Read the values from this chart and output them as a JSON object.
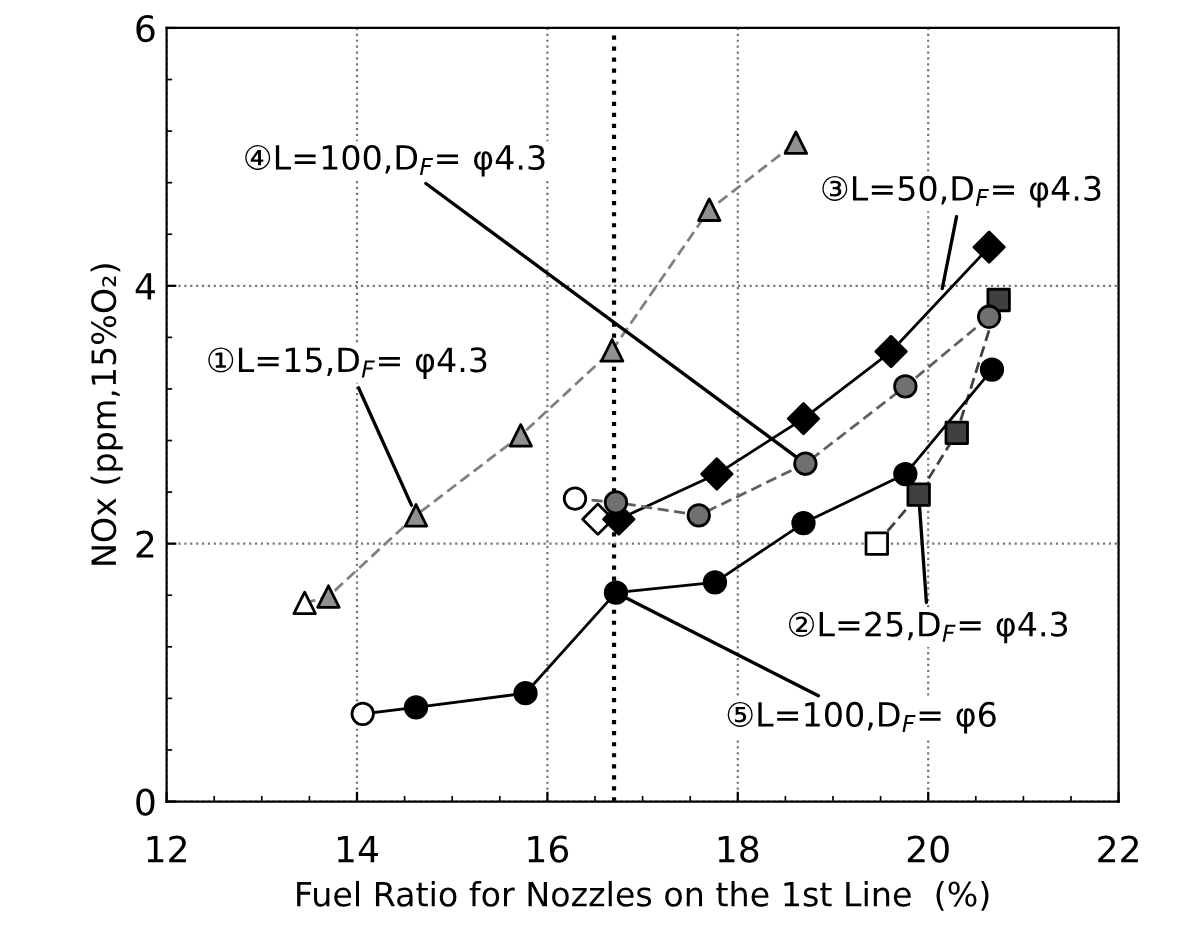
{
  "chart_data": {
    "type": "line",
    "xlabel": "Fuel Ratio for Nozzles on the 1st Line  (%)",
    "ylabel": "NOx (ppm,15%O₂)",
    "xlim": [
      12,
      22
    ],
    "xticks": [
      12,
      14,
      16,
      18,
      20,
      22
    ],
    "ylim": [
      0,
      6
    ],
    "yticks": [
      0,
      2,
      4,
      6
    ],
    "grid": true,
    "legend": false,
    "ref_lines": [
      {
        "axis": "x",
        "value": 16.7,
        "line_style": "dotted",
        "color": "#000000"
      }
    ],
    "series": [
      {
        "name": "①L=15,D$_{F}$= φ4.3",
        "color": "#808080",
        "marker": "triangle",
        "line_style": "dashed",
        "x": [
          13.45,
          13.7,
          14.62,
          15.72,
          16.68,
          17.7,
          18.61
        ],
        "values": [
          1.54,
          1.59,
          2.22,
          2.84,
          3.5,
          4.59,
          5.11
        ],
        "colors": [
          "#ffffff",
          "#909090",
          "#909090",
          "#909090",
          "#909090",
          "#909090",
          "#909090"
        ]
      },
      {
        "name": "②L=25,D$_{F}$= φ4.3",
        "color": "#404040",
        "marker": "square",
        "line_style": "dashed",
        "x": [
          19.46,
          19.9,
          20.3,
          20.74
        ],
        "values": [
          2.0,
          2.38,
          2.86,
          3.89
        ],
        "colors": [
          "#ffffff",
          "#404040",
          "#404040",
          "#404040"
        ]
      },
      {
        "name": "③L=50,D$_{F}$= φ4.3",
        "color": "#000000",
        "marker": "diamond",
        "line_style": "solid",
        "x": [
          16.53,
          16.75,
          17.78,
          18.69,
          19.61,
          20.64
        ],
        "values": [
          2.19,
          2.19,
          2.54,
          2.97,
          3.49,
          4.3
        ],
        "colors": [
          "#ffffff",
          "#000000",
          "#000000",
          "#000000",
          "#000000",
          "#000000"
        ]
      },
      {
        "name": "④L=100,D$_{F}$= φ4.3",
        "color": "#606060",
        "marker": "circle",
        "line_style": "dashed",
        "x": [
          16.29,
          16.72,
          17.59,
          18.71,
          19.76,
          20.64
        ],
        "values": [
          2.35,
          2.32,
          2.22,
          2.62,
          3.22,
          3.76
        ],
        "colors": [
          "#ffffff",
          "#707070",
          "#707070",
          "#707070",
          "#707070",
          "#707070"
        ]
      },
      {
        "name": "⑤L=100,D$_{F}$= φ6",
        "color": "#000000",
        "marker": "circle",
        "line_style": "solid",
        "x": [
          14.06,
          14.62,
          15.77,
          16.72,
          17.76,
          18.69,
          19.76,
          20.67
        ],
        "values": [
          0.68,
          0.73,
          0.84,
          1.62,
          1.7,
          2.16,
          2.54,
          3.35
        ],
        "colors": [
          "#ffffff",
          "#000000",
          "#000000",
          "#000000",
          "#000000",
          "#000000",
          "#000000",
          "#000000"
        ]
      }
    ]
  }
}
